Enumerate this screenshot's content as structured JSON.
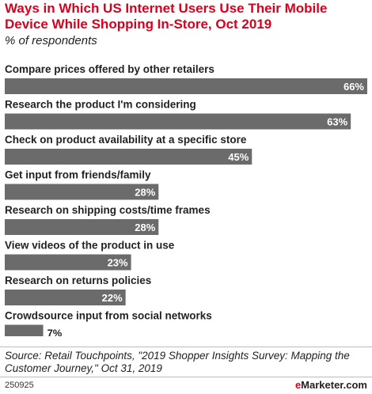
{
  "title": "Ways in Which US Internet Users Use Their Mobile Device While Shopping In-Store, Oct 2019",
  "subtitle": "% of respondents",
  "source": "Source: Retail Touchpoints, \"2019 Shopper Insights Survey: Mapping the Customer Journey,\" Oct 31, 2019",
  "footer": {
    "id": "250925",
    "brand_prefix": "e",
    "brand_rest": "Marketer.com"
  },
  "colors": {
    "title": "#d9001e",
    "bar": "#6b6b6b",
    "value_inside": "#ffffff",
    "value_outside": "#222222"
  },
  "chart_data": {
    "type": "bar",
    "orientation": "horizontal",
    "categories": [
      "Compare prices offered by other retailers",
      "Research the product I'm considering",
      "Check on product availability at a specific store",
      "Get input from friends/family",
      "Research on shipping costs/time frames",
      "View videos of the product in use",
      "Research on returns policies",
      "Crowdsource input from social networks"
    ],
    "values": [
      66,
      63,
      45,
      28,
      28,
      23,
      22,
      7
    ],
    "value_suffix": "%",
    "xlim": [
      0,
      66
    ],
    "grid": false,
    "legend": "none"
  }
}
